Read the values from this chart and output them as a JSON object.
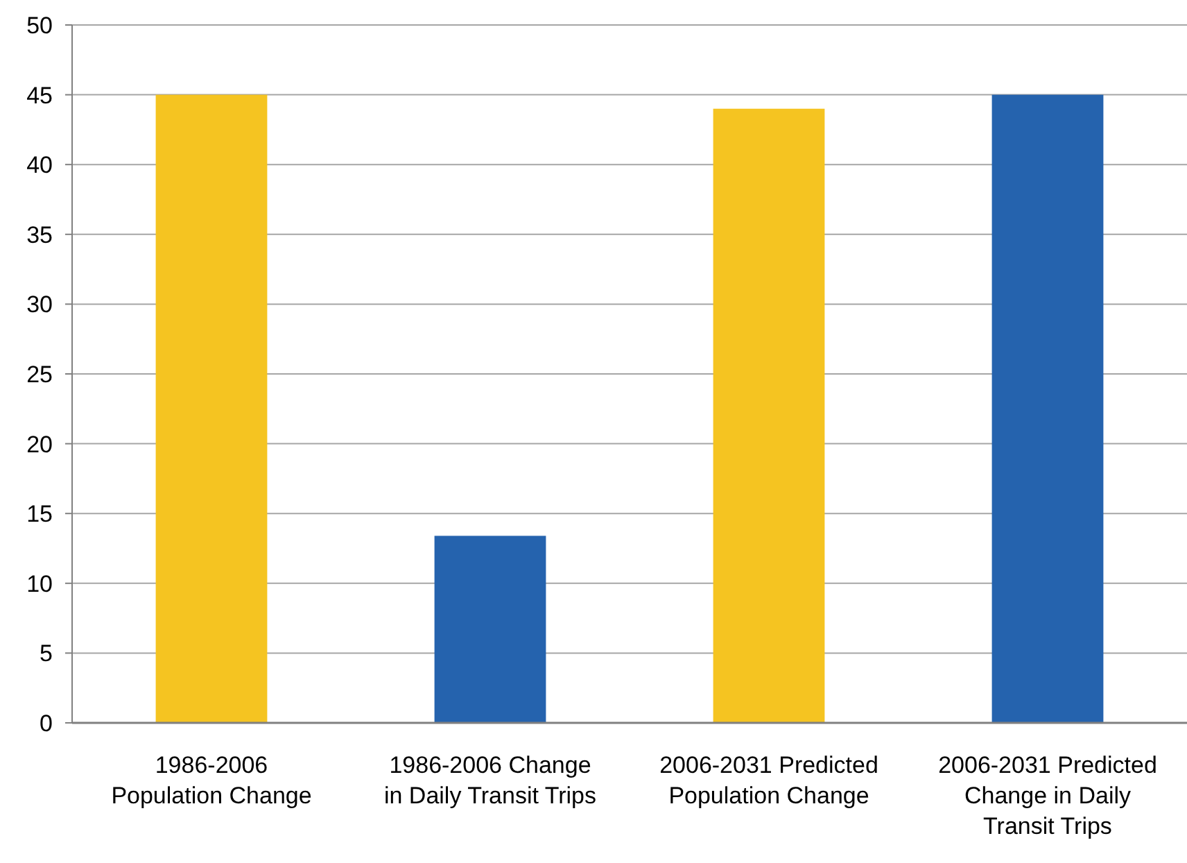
{
  "chart_data": {
    "type": "bar",
    "categories": [
      "1986-2006 Population Change",
      "1986-2006 Change in Daily Transit Trips",
      "2006-2031 Predicted Population Change",
      "2006-2031 Predicted Change in Daily Transit Trips"
    ],
    "values": [
      45,
      13.4,
      44,
      45
    ],
    "colors": [
      "#f5c421",
      "#2563ae",
      "#f5c421",
      "#2563ae"
    ],
    "ylim": [
      0,
      50
    ],
    "yticks": [
      0,
      5,
      10,
      15,
      20,
      25,
      30,
      35,
      40,
      45,
      50
    ],
    "grid": "y"
  }
}
